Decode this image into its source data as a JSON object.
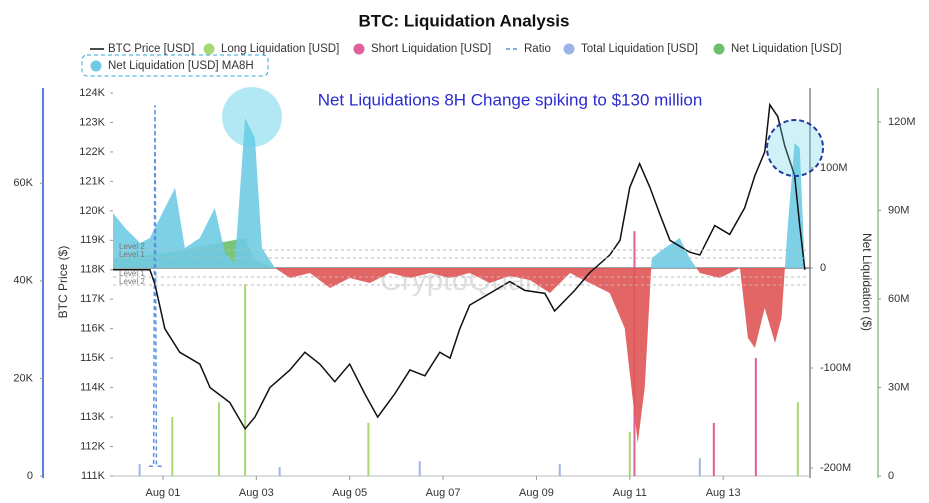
{
  "chart_data": {
    "type": "combo",
    "title": "BTC: Liquidation Analysis",
    "annotation": "Net Liquidations 8H Change spiking to $130 million",
    "watermark": "CryptoQuant",
    "y_label": "BTC Price ($)",
    "y2_label": "Net Liquidation ($)",
    "xlim": [
      -0.07,
      14.86
    ],
    "xticks": [
      {
        "value": 1,
        "label": "Aug 01"
      },
      {
        "value": 3,
        "label": "Aug 03"
      },
      {
        "value": 5,
        "label": "Aug 05"
      },
      {
        "value": 7,
        "label": "Aug 07"
      },
      {
        "value": 9,
        "label": "Aug 09"
      },
      {
        "value": 11,
        "label": "Aug 11"
      },
      {
        "value": 13,
        "label": "Aug 13"
      }
    ],
    "ylim": [
      111000,
      124000
    ],
    "yticks": [
      {
        "value": 111000,
        "label": "111K"
      },
      {
        "value": 112000,
        "label": "112K"
      },
      {
        "value": 113000,
        "label": "113K"
      },
      {
        "value": 114000,
        "label": "114K"
      },
      {
        "value": 115000,
        "label": "115K"
      },
      {
        "value": 116000,
        "label": "116K"
      },
      {
        "value": 117000,
        "label": "117K"
      },
      {
        "value": 118000,
        "label": "118K"
      },
      {
        "value": 119000,
        "label": "119K"
      },
      {
        "value": 120000,
        "label": "120K"
      },
      {
        "value": 121000,
        "label": "121K"
      },
      {
        "value": 122000,
        "label": "122K"
      },
      {
        "value": 123000,
        "label": "123K"
      },
      {
        "value": 124000,
        "label": "124K"
      }
    ],
    "y2lim": [
      -208000000,
      175000000
    ],
    "y2ticks": [
      {
        "value": -200000000,
        "label": "-200M"
      },
      {
        "value": -100000000,
        "label": "-100M"
      },
      0,
      {
        "value": 100000000,
        "label": "100M"
      }
    ],
    "y3lim": [
      0,
      129800000
    ],
    "y3ticks": [
      0,
      {
        "value": 30000000,
        "label": "30M"
      },
      {
        "value": 60000000,
        "label": "60M"
      },
      {
        "value": 90000000,
        "label": "90M"
      },
      {
        "value": 120000000,
        "label": "120M"
      }
    ],
    "y4lim": [
      0,
      78500
    ],
    "y4ticks": [
      0,
      {
        "value": 20000,
        "label": "20K"
      },
      {
        "value": 40000,
        "label": "40K"
      },
      {
        "value": 60000,
        "label": "60K"
      }
    ],
    "levels": [
      {
        "value": 18000000,
        "label": "Level 2"
      },
      {
        "value": 10000000,
        "label": "Level 1"
      },
      {
        "value": -9000000,
        "label": "Level 1"
      },
      {
        "value": -17000000,
        "label": "Level 2"
      }
    ],
    "series": [
      {
        "name": "BTC Price [USD]",
        "type": "line",
        "axis": "y",
        "color": "#111111",
        "x": [
          -0.07,
          0.72,
          0.83,
          1.04,
          1.36,
          1.79,
          2.01,
          2.43,
          2.76,
          2.97,
          3.29,
          3.72,
          4.04,
          4.36,
          4.68,
          5.0,
          5.32,
          5.6,
          5.97,
          6.29,
          6.61,
          6.93,
          7.15,
          7.36,
          7.57,
          8.0,
          8.43,
          8.75,
          9.18,
          9.39,
          9.82,
          10.14,
          10.57,
          10.79,
          11.0,
          11.21,
          11.43,
          11.64,
          11.86,
          12.28,
          12.5,
          12.82,
          13.14,
          13.46,
          13.68,
          13.89,
          14.0,
          14.17,
          14.32,
          14.53,
          14.64,
          14.75
        ],
        "values": [
          118000,
          118000,
          117500,
          116000,
          115200,
          114800,
          114000,
          113500,
          112600,
          113000,
          114000,
          114600,
          115200,
          114800,
          114200,
          114800,
          113800,
          113000,
          113800,
          114600,
          114400,
          115200,
          115000,
          116000,
          116800,
          117200,
          117600,
          117300,
          117200,
          116600,
          117300,
          117900,
          118500,
          119000,
          120800,
          121600,
          120800,
          119900,
          119000,
          118600,
          118500,
          119500,
          119200,
          120100,
          121200,
          122000,
          123600,
          123200,
          122200,
          121200,
          119500,
          118000
        ]
      },
      {
        "name": "Long Liquidation [USD]",
        "type": "bar",
        "axis": "y3",
        "color": "#a8d872",
        "x": [
          1.2,
          2.2,
          2.76,
          5.4,
          11.0,
          14.6
        ],
        "values": [
          20000000,
          25000000,
          65000000,
          18000000,
          15000000,
          25000000
        ]
      },
      {
        "name": "Short Liquidation [USD]",
        "type": "bar",
        "axis": "y3",
        "color": "#e0609a",
        "x": [
          11.1,
          12.8,
          13.7
        ],
        "values": [
          83000000,
          18000000,
          40000000
        ]
      },
      {
        "name": "Ratio",
        "type": "dashed",
        "axis": "y4",
        "color": "#5b8fe0",
        "x": [
          0.7,
          0.8,
          0.83,
          0.86,
          1.0
        ],
        "values": [
          2000,
          2000,
          76000,
          2000,
          2000
        ]
      },
      {
        "name": "Total Liquidation [USD]",
        "type": "bar",
        "axis": "y3",
        "color": "#9db4e8",
        "x": [
          0.5,
          3.5,
          6.5,
          9.5,
          12.5
        ],
        "values": [
          4000000,
          3000000,
          5000000,
          4000000,
          6000000
        ]
      },
      {
        "name": "Net Liquidation [USD]",
        "type": "area",
        "axis": "y2",
        "color": "#6cbf6c",
        "x": [
          -0.07,
          1.04,
          2.76,
          2.97,
          3.4
        ],
        "values": [
          10000000,
          15000000,
          30000000,
          8000000,
          0
        ]
      },
      {
        "name": "Net Liquidation [USD] MA8H",
        "type": "area",
        "axis": "y2",
        "color": "#6fcbe3",
        "negative_color": "#e05555",
        "x": [
          -0.07,
          0.19,
          0.51,
          0.72,
          1.04,
          1.26,
          1.47,
          1.79,
          2.11,
          2.33,
          2.54,
          2.76,
          2.97,
          3.12,
          3.4,
          3.72,
          4.15,
          4.58,
          5.0,
          5.43,
          5.86,
          6.29,
          6.72,
          7.15,
          7.57,
          8.0,
          8.43,
          8.86,
          9.29,
          9.72,
          10.14,
          10.57,
          10.89,
          11.06,
          11.17,
          11.32,
          11.47,
          11.75,
          12.07,
          12.28,
          12.5,
          12.93,
          13.36,
          13.53,
          13.68,
          13.89,
          14.11,
          14.25,
          14.38,
          14.53,
          14.64,
          14.75
        ],
        "values": [
          55000000,
          40000000,
          25000000,
          30000000,
          60000000,
          80000000,
          20000000,
          30000000,
          60000000,
          15000000,
          5000000,
          150000000,
          130000000,
          20000000,
          0,
          -10000000,
          -5000000,
          -20000000,
          -10000000,
          -15000000,
          -5000000,
          -10000000,
          -5000000,
          -10000000,
          -5000000,
          -15000000,
          -8000000,
          -12000000,
          -25000000,
          -5000000,
          -15000000,
          -25000000,
          -60000000,
          -130000000,
          -175000000,
          -120000000,
          10000000,
          20000000,
          30000000,
          10000000,
          -5000000,
          -10000000,
          0,
          -70000000,
          -80000000,
          -40000000,
          -75000000,
          -50000000,
          40000000,
          125000000,
          120000000,
          0
        ]
      }
    ]
  }
}
